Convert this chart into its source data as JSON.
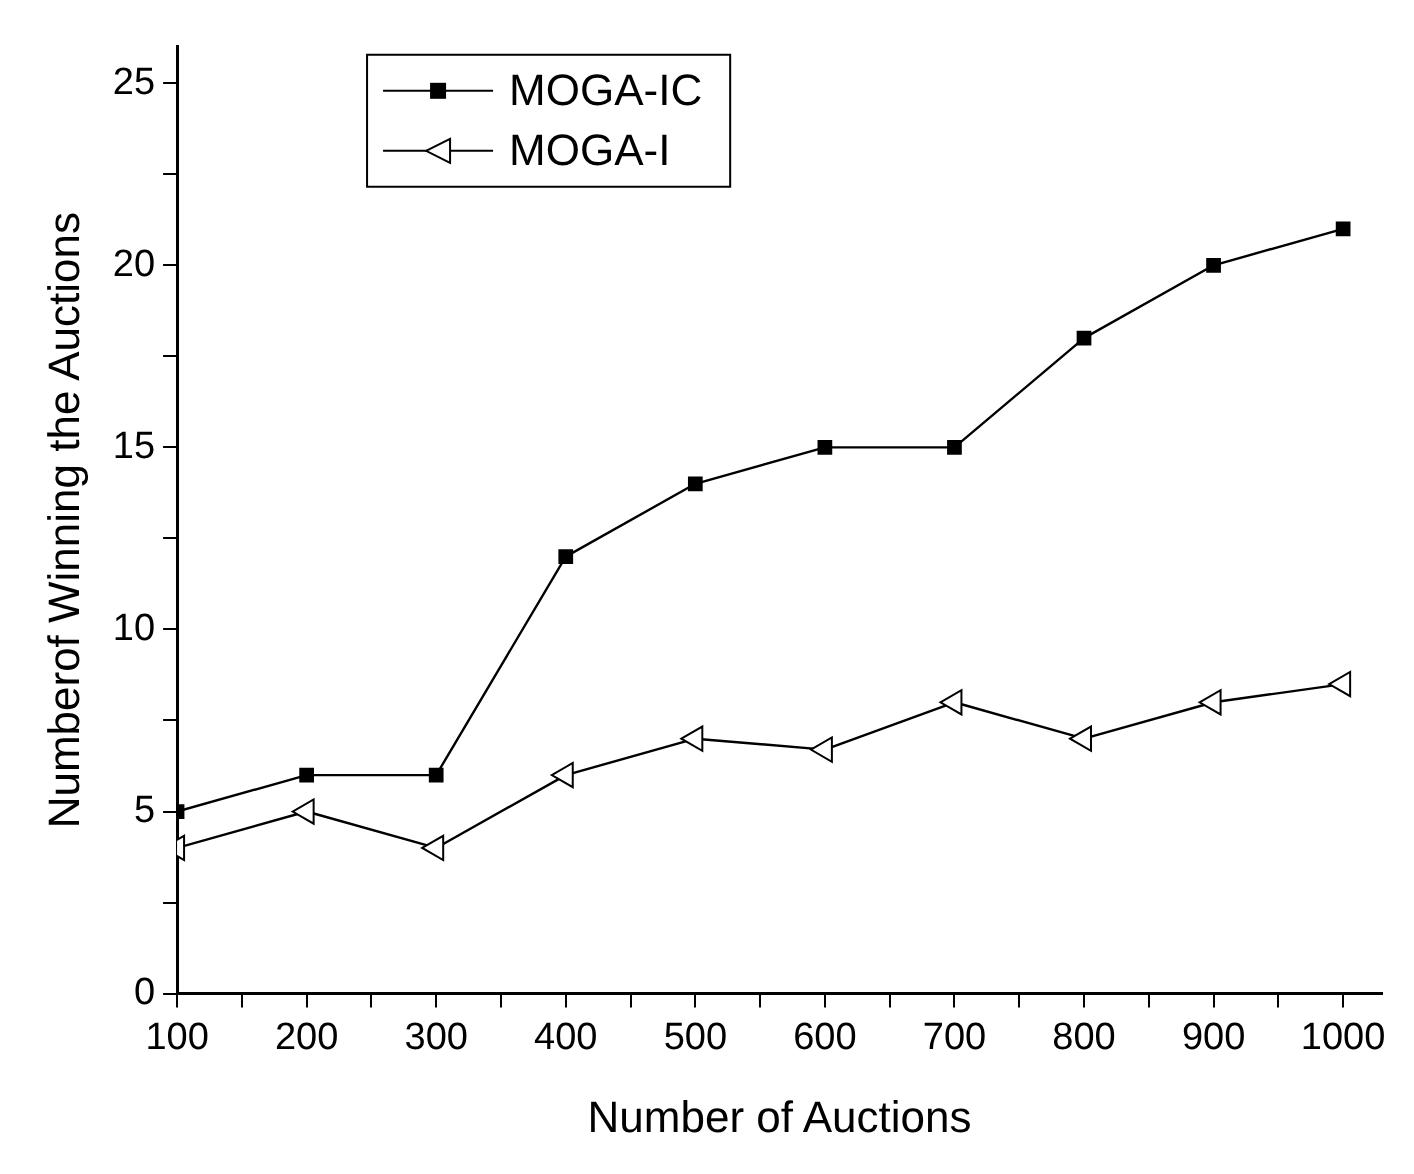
{
  "chart_data": {
    "type": "line",
    "xlabel": "Number of Auctions",
    "ylabel": "Numberof Winning the Auctions",
    "x": [
      100,
      200,
      300,
      400,
      500,
      600,
      700,
      800,
      900,
      1000
    ],
    "series": [
      {
        "name": "MOGA-IC",
        "color": "#000000",
        "marker": "square",
        "values": [
          5,
          6,
          6,
          12,
          14,
          15,
          15,
          18,
          20,
          21
        ]
      },
      {
        "name": "MOGA-I",
        "color": "#000000",
        "marker": "triangle",
        "values": [
          4,
          5,
          4,
          6,
          7,
          6.7,
          8,
          7,
          8,
          8.5
        ]
      }
    ],
    "xlim": [
      100,
      1030
    ],
    "ylim": [
      0,
      26
    ],
    "xticks": [
      100,
      {
        "value": 150,
        "label": null
      },
      200,
      {
        "value": 250,
        "label": null
      },
      300,
      {
        "value": 350,
        "label": null
      },
      400,
      {
        "value": 450,
        "label": null
      },
      500,
      {
        "value": 550,
        "label": null
      },
      600,
      {
        "value": 650,
        "label": null
      },
      700,
      {
        "value": 750,
        "label": null
      },
      800,
      {
        "value": 850,
        "label": null
      },
      900,
      {
        "value": 950,
        "label": null
      },
      1000
    ],
    "yticks": [
      0,
      {
        "value": 2.5,
        "label": null
      },
      5,
      {
        "value": 7.5,
        "label": null
      },
      10,
      {
        "value": 12.5,
        "label": null
      },
      15,
      {
        "value": 17.5,
        "label": null
      },
      20,
      {
        "value": 22.5,
        "label": null
      },
      25
    ],
    "legend": "top left",
    "grid": false,
    "line_style": "solid"
  }
}
